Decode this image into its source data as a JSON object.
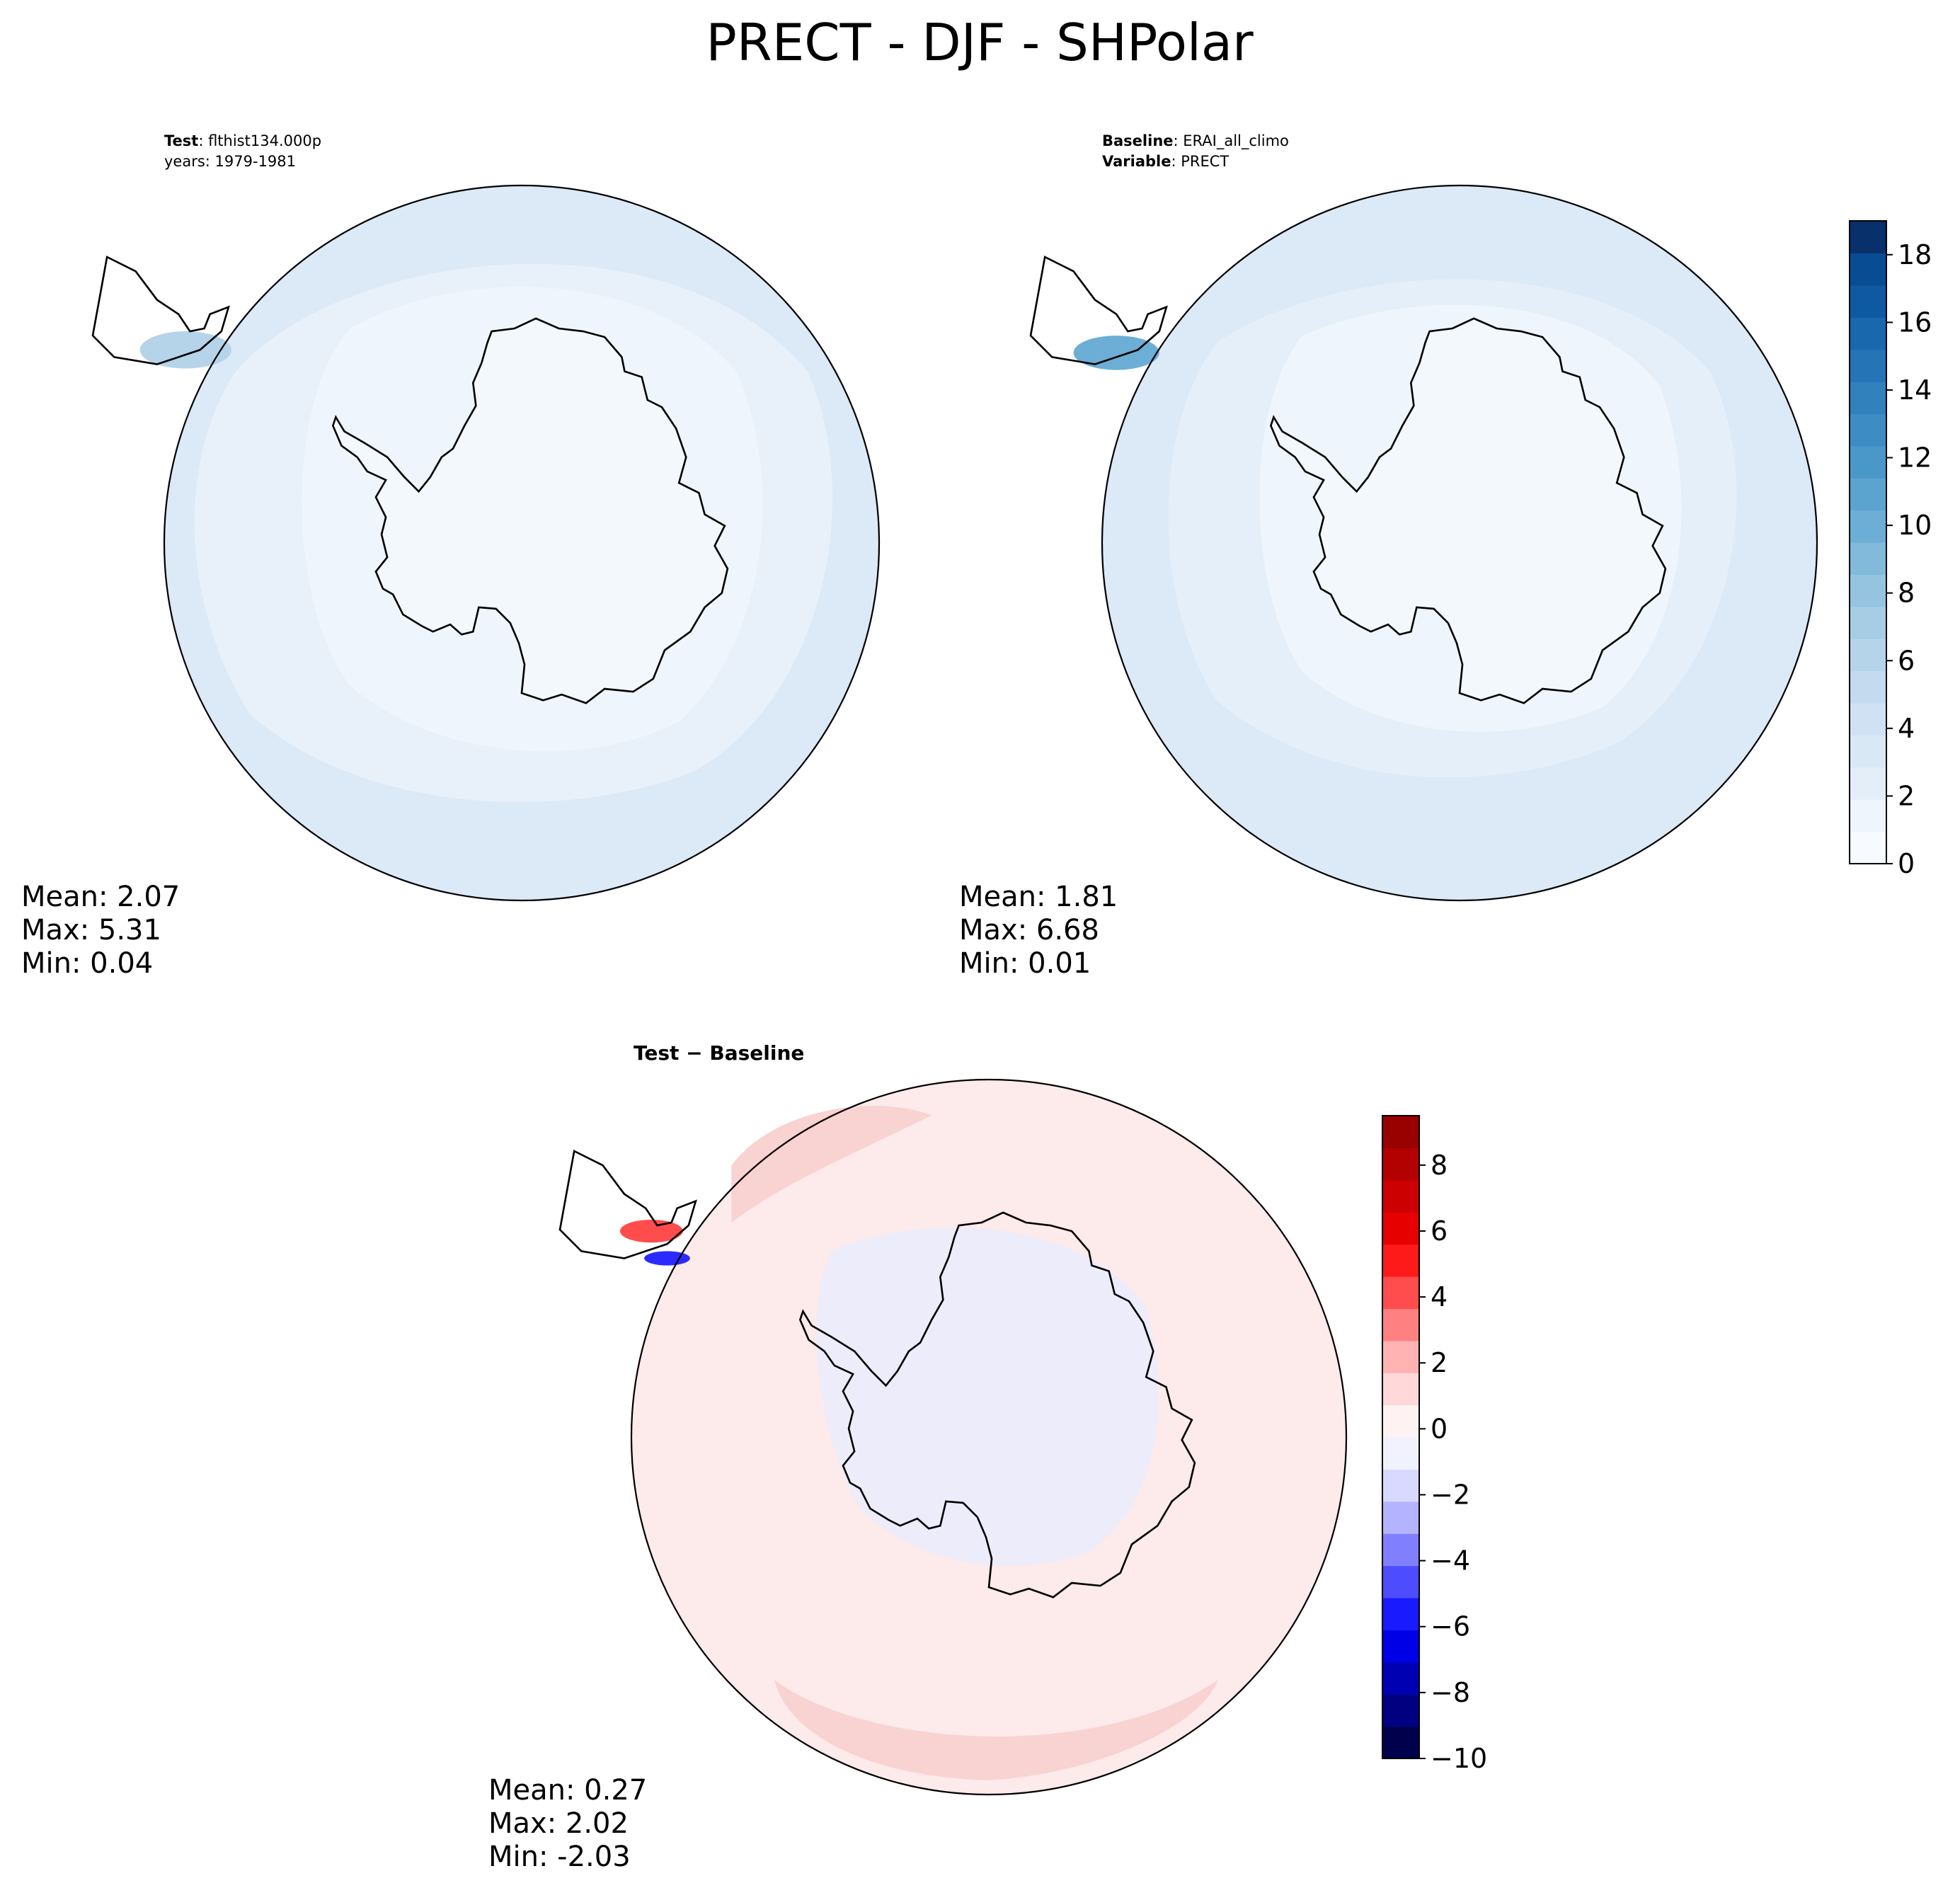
{
  "figure": {
    "title": "PRECT - DJF - SHPolar"
  },
  "panels": {
    "test": {
      "label_bold": "Test",
      "label_value": ": flthist134.000p",
      "years_line": "years: 1979-1981",
      "stats": {
        "mean": "Mean:  2.07",
        "max": "Max:  5.31",
        "min": "Min:  0.04"
      }
    },
    "baseline": {
      "label_bold": "Baseline",
      "label_value": ": ERAI_all_climo",
      "variable_bold": "Variable",
      "variable_value": ": PRECT",
      "stats": {
        "mean": "Mean:  1.81",
        "max": "Max:  6.68",
        "min": "Min:  0.01"
      }
    },
    "diff": {
      "title": "Test − Baseline",
      "stats": {
        "mean": "Mean:  0.27",
        "max": "Max:  2.02",
        "min": "Min: -2.03"
      }
    }
  },
  "chart_data": [
    {
      "type": "heatmap",
      "panel": "test",
      "projection": "south-polar-stereographic",
      "variable": "PRECT",
      "season": "DJF",
      "region": "SHPolar",
      "stats": {
        "mean": 2.07,
        "max": 5.31,
        "min": 0.04
      },
      "colormap": "Blues",
      "fill_colors": [
        "#eef5fc",
        "#dce9f6"
      ]
    },
    {
      "type": "heatmap",
      "panel": "baseline",
      "projection": "south-polar-stereographic",
      "variable": "PRECT",
      "stats": {
        "mean": 1.81,
        "max": 6.68,
        "min": 0.01
      },
      "colormap": "Blues",
      "colorbar": {
        "range": [
          0,
          19
        ],
        "ticks": [
          0,
          2,
          4,
          6,
          8,
          10,
          12,
          14,
          16,
          18
        ],
        "colors": [
          "#f7fbff",
          "#eef5fc",
          "#e3eef9",
          "#d9e8f5",
          "#cfe1f2",
          "#c4daee",
          "#b5d4e9",
          "#a6cde4",
          "#94c4df",
          "#81badb",
          "#6caed6",
          "#5ca4d0",
          "#4a98c9",
          "#3d8dc4",
          "#3181bd",
          "#2474b6",
          "#1967ad",
          "#0e59a2",
          "#084c93",
          "#08306b"
        ]
      }
    },
    {
      "type": "heatmap",
      "panel": "diff",
      "projection": "south-polar-stereographic",
      "variable": "PRECT",
      "stats": {
        "mean": 0.27,
        "max": 2.02,
        "min": -2.03
      },
      "colormap": "seismic",
      "fill_colors": [
        "#fdeaea",
        "#f9d2d2",
        "#ececfb"
      ],
      "colorbar": {
        "range": [
          -10,
          9.5
        ],
        "ticks": [
          -10,
          -8,
          -6,
          -4,
          -2,
          0,
          2,
          4,
          6,
          8
        ],
        "tick_labels": [
          "−10",
          "−8",
          "−6",
          "−4",
          "−2",
          "0",
          "2",
          "4",
          "6",
          "8"
        ],
        "colors": [
          "#00004c",
          "#000080",
          "#0000b3",
          "#0000e6",
          "#1a1aff",
          "#4d4dff",
          "#8080ff",
          "#b3b3ff",
          "#d9d9ff",
          "#f2f2ff",
          "#fff2f2",
          "#ffd9d9",
          "#ffb3b3",
          "#ff8080",
          "#ff4d4d",
          "#ff1a1a",
          "#e60000",
          "#cc0000",
          "#b30000",
          "#990000"
        ]
      }
    }
  ]
}
